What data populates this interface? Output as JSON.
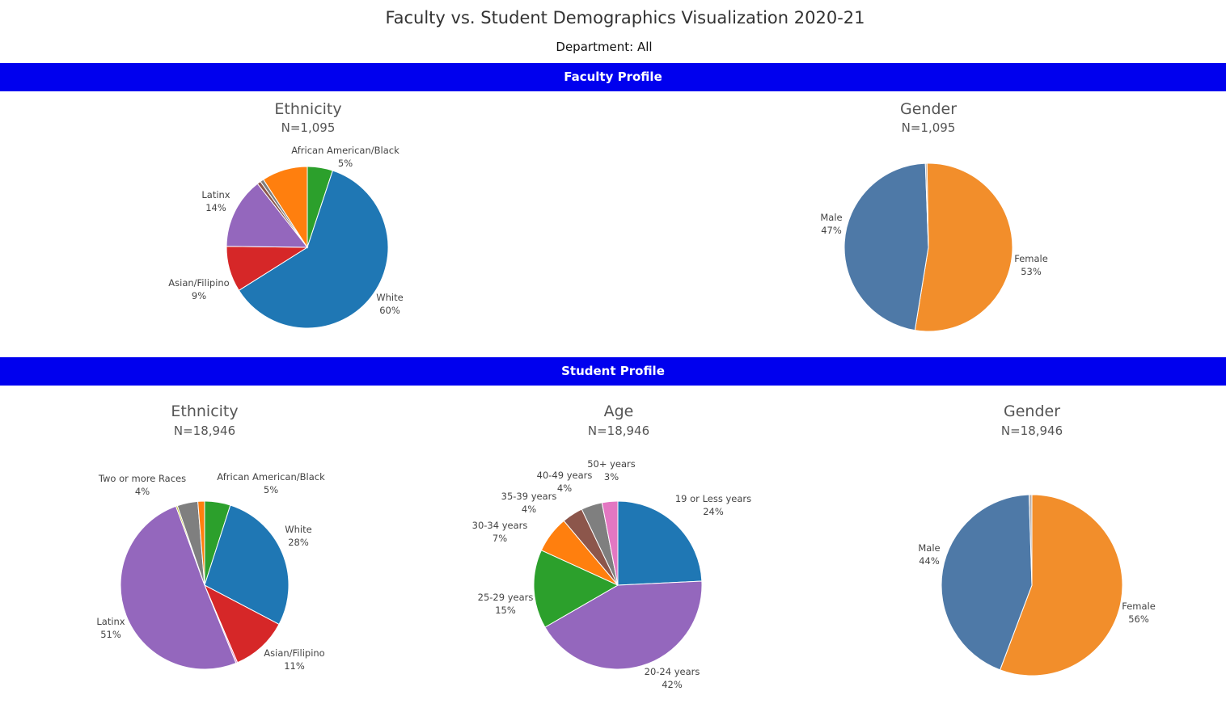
{
  "title": "Faculty vs. Student Demographics Visualization 2020-21",
  "department": "Department: All",
  "sections": {
    "faculty": "Faculty Profile",
    "student": "Student Profile"
  },
  "chart_data": [
    {
      "type": "pie",
      "section": "Faculty Profile",
      "title": "Ethnicity",
      "subtitle": "N=1,095",
      "slices": [
        {
          "name": "African American/Black",
          "value": 5,
          "label": "5%",
          "color": "#2ca02c",
          "show_label": true
        },
        {
          "name": "White",
          "value": 60,
          "label": "60%",
          "color": "#1f77b4",
          "show_label": true
        },
        {
          "name": "Asian/Filipino",
          "value": 9,
          "label": "9%",
          "color": "#d62728",
          "show_label": true
        },
        {
          "name": "Latinx",
          "value": 14,
          "label": "14%",
          "color": "#9467bd",
          "show_label": true
        },
        {
          "name": "",
          "value": 0.7,
          "label": "",
          "color": "#8c564b",
          "show_label": false
        },
        {
          "name": "",
          "value": 0.7,
          "label": "",
          "color": "#7f7f7f",
          "show_label": false
        },
        {
          "name": "",
          "value": 9,
          "label": "",
          "color": "#ff7f0e",
          "show_label": false
        }
      ]
    },
    {
      "type": "pie",
      "section": "Faculty Profile",
      "title": "Gender",
      "subtitle": "N=1,095",
      "slices": [
        {
          "name": "Female",
          "value": 53,
          "label": "53%",
          "color": "#f28e2b",
          "show_label": true
        },
        {
          "name": "Male",
          "value": 47,
          "label": "47%",
          "color": "#4e79a7",
          "show_label": true
        },
        {
          "name": "",
          "value": 0.3,
          "label": "",
          "color": "#bab0ac",
          "show_label": false
        }
      ]
    },
    {
      "type": "pie",
      "section": "Student Profile",
      "title": "Ethnicity",
      "subtitle": "N=18,946",
      "slices": [
        {
          "name": "African American/Black",
          "value": 5,
          "label": "5%",
          "color": "#2ca02c",
          "show_label": true
        },
        {
          "name": "White",
          "value": 28,
          "label": "28%",
          "color": "#1f77b4",
          "show_label": true
        },
        {
          "name": "Asian/Filipino",
          "value": 11,
          "label": "11%",
          "color": "#d62728",
          "show_label": true
        },
        {
          "name": "",
          "value": 0.3,
          "label": "",
          "color": "#e377c2",
          "show_label": false
        },
        {
          "name": "Latinx",
          "value": 51,
          "label": "51%",
          "color": "#9467bd",
          "show_label": true
        },
        {
          "name": "",
          "value": 0.3,
          "label": "",
          "color": "#bcbd22",
          "show_label": false
        },
        {
          "name": "Two or more Races",
          "value": 4,
          "label": "4%",
          "color": "#7f7f7f",
          "show_label": true
        },
        {
          "name": "",
          "value": 1.3,
          "label": "",
          "color": "#ff7f0e",
          "show_label": false
        }
      ]
    },
    {
      "type": "pie",
      "section": "Student Profile",
      "title": "Age",
      "subtitle": "N=18,946",
      "slices": [
        {
          "name": "19 or Less years",
          "value": 24,
          "label": "24%",
          "color": "#1f77b4",
          "show_label": true
        },
        {
          "name": "20-24 years",
          "value": 42,
          "label": "42%",
          "color": "#9467bd",
          "show_label": true
        },
        {
          "name": "25-29 years",
          "value": 15,
          "label": "15%",
          "color": "#2ca02c",
          "show_label": true
        },
        {
          "name": "30-34 years",
          "value": 7,
          "label": "7%",
          "color": "#ff7f0e",
          "show_label": true
        },
        {
          "name": "35-39 years",
          "value": 4,
          "label": "4%",
          "color": "#8c564b",
          "show_label": true
        },
        {
          "name": "40-49 years",
          "value": 4,
          "label": "4%",
          "color": "#7f7f7f",
          "show_label": true
        },
        {
          "name": "50+ years",
          "value": 3,
          "label": "3%",
          "color": "#e377c2",
          "show_label": true
        }
      ]
    },
    {
      "type": "pie",
      "section": "Student Profile",
      "title": "Gender",
      "subtitle": "N=18,946",
      "slices": [
        {
          "name": "Female",
          "value": 56,
          "label": "56%",
          "color": "#f28e2b",
          "show_label": true
        },
        {
          "name": "Male",
          "value": 44,
          "label": "44%",
          "color": "#4e79a7",
          "show_label": true
        },
        {
          "name": "",
          "value": 0.5,
          "label": "",
          "color": "#bab0ac",
          "show_label": false
        }
      ]
    }
  ]
}
